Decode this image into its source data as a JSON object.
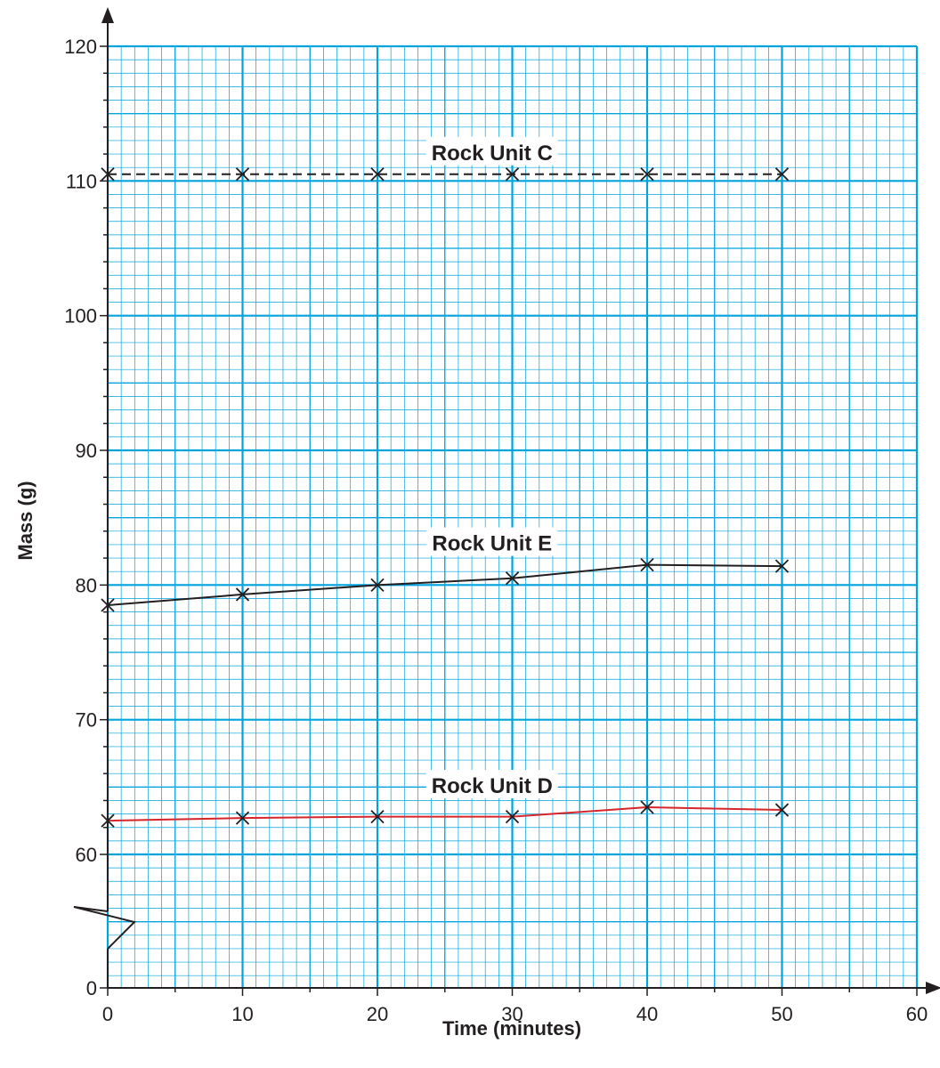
{
  "chart_data": {
    "type": "line",
    "xlabel": "Time (minutes)",
    "ylabel": "Mass (g)",
    "xlim": [
      0,
      60
    ],
    "x_ticks": [
      0,
      10,
      20,
      30,
      40,
      50,
      60
    ],
    "y_ticks": [
      60,
      70,
      80,
      90,
      100,
      110,
      120
    ],
    "y_axis_break": {
      "below": 60,
      "origin_label": "0"
    },
    "grid": true,
    "x": [
      0,
      10,
      20,
      30,
      40,
      50
    ],
    "series": [
      {
        "name": "Rock Unit C",
        "values": [
          110.5,
          110.5,
          110.5,
          110.5,
          110.5,
          110.5
        ],
        "line_style": "dashed",
        "color": "#231f20"
      },
      {
        "name": "Rock Unit E",
        "values": [
          78.5,
          79.3,
          80.0,
          80.5,
          81.5,
          81.4
        ],
        "line_style": "solid",
        "color": "#231f20"
      },
      {
        "name": "Rock Unit D",
        "values": [
          62.5,
          62.7,
          62.8,
          62.8,
          63.5,
          63.3
        ],
        "line_style": "solid",
        "color": "#d7262b"
      }
    ],
    "colors": {
      "grid": "#00a3dc",
      "axis": "#231f20",
      "background": "#ffffff"
    }
  }
}
